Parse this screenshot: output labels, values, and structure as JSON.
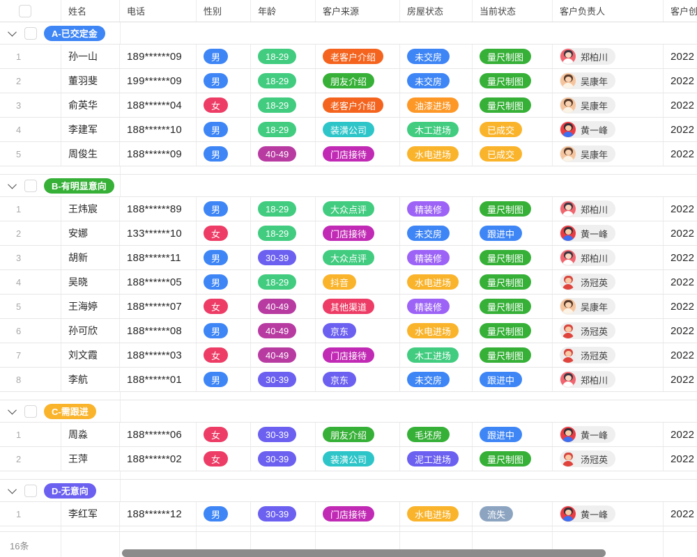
{
  "columns": [
    {
      "key": "name",
      "label": "姓名"
    },
    {
      "key": "phone",
      "label": "电话"
    },
    {
      "key": "gender",
      "label": "性别"
    },
    {
      "key": "age",
      "label": "年龄"
    },
    {
      "key": "source",
      "label": "客户来源"
    },
    {
      "key": "house",
      "label": "房屋状态"
    },
    {
      "key": "status",
      "label": "当前状态"
    },
    {
      "key": "owner",
      "label": "客户负责人"
    },
    {
      "key": "created",
      "label": "客户创建时间"
    }
  ],
  "palette": {
    "blue": "#3E85F6",
    "pink": "#ED3C65",
    "mint": "#42CC80",
    "grass": "#36B037",
    "plum": "#B83BA2",
    "magenta": "#C12AB4",
    "indigo": "#6B60F0",
    "amber": "#FAB42C",
    "orangered": "#F4641E",
    "orange": "#FD9827",
    "teal": "#2EC5C9",
    "violet": "#9C63F6",
    "grayblue": "#8DA4C1"
  },
  "owners": {
    "郑柏川": {
      "bg": "#F2646E",
      "hair": "#3B3540",
      "skin": "#FBD6BF",
      "body": "#FFFFFF"
    },
    "吴康年": {
      "bg": "#F6C49C",
      "hair": "#573A2B",
      "skin": "#FAD3B2",
      "body": "#FBF3E6"
    },
    "黄一峰": {
      "bg": "#EC3B42",
      "hair": "#332D36",
      "skin": "#F8CBA6",
      "body": "#3E6FF0"
    },
    "汤冠英": {
      "bg": "#EDEDED",
      "hair": "#D8453E",
      "skin": "#F8CBA6",
      "body": "#E0433C"
    }
  },
  "groups": [
    {
      "label": "A-已交定金",
      "color": "blue",
      "rows": [
        {
          "num": "1",
          "name": "孙一山",
          "phone": "189******09",
          "gender": {
            "label": "男",
            "color": "blue"
          },
          "age": {
            "label": "18-29",
            "color": "mint"
          },
          "source": {
            "label": "老客户介绍",
            "color": "orangered"
          },
          "house": {
            "label": "未交房",
            "color": "blue"
          },
          "status": {
            "label": "量尺制图",
            "color": "grass"
          },
          "owner": "郑柏川",
          "created": "2022"
        },
        {
          "num": "2",
          "name": "董羽斐",
          "phone": "199******09",
          "gender": {
            "label": "男",
            "color": "blue"
          },
          "age": {
            "label": "18-29",
            "color": "mint"
          },
          "source": {
            "label": "朋友介绍",
            "color": "grass"
          },
          "house": {
            "label": "未交房",
            "color": "blue"
          },
          "status": {
            "label": "量尺制图",
            "color": "grass"
          },
          "owner": "吴康年",
          "created": "2022"
        },
        {
          "num": "3",
          "name": "俞英华",
          "phone": "188******04",
          "gender": {
            "label": "女",
            "color": "pink"
          },
          "age": {
            "label": "18-29",
            "color": "mint"
          },
          "source": {
            "label": "老客户介绍",
            "color": "orangered"
          },
          "house": {
            "label": "油漆进场",
            "color": "orange"
          },
          "status": {
            "label": "量尺制图",
            "color": "grass"
          },
          "owner": "吴康年",
          "created": "2022"
        },
        {
          "num": "4",
          "name": "李建军",
          "phone": "188******10",
          "gender": {
            "label": "男",
            "color": "blue"
          },
          "age": {
            "label": "18-29",
            "color": "mint"
          },
          "source": {
            "label": "装潢公司",
            "color": "teal"
          },
          "house": {
            "label": "木工进场",
            "color": "mint"
          },
          "status": {
            "label": "已成交",
            "color": "amber"
          },
          "owner": "黄一峰",
          "created": "2022"
        },
        {
          "num": "5",
          "name": "周俊生",
          "phone": "188******09",
          "gender": {
            "label": "男",
            "color": "blue"
          },
          "age": {
            "label": "40-49",
            "color": "plum"
          },
          "source": {
            "label": "门店接待",
            "color": "magenta"
          },
          "house": {
            "label": "水电进场",
            "color": "amber"
          },
          "status": {
            "label": "已成交",
            "color": "amber"
          },
          "owner": "吴康年",
          "created": "2022"
        }
      ]
    },
    {
      "label": "B-有明显意向",
      "color": "grass",
      "rows": [
        {
          "num": "1",
          "name": "王炜宸",
          "phone": "188******89",
          "gender": {
            "label": "男",
            "color": "blue"
          },
          "age": {
            "label": "18-29",
            "color": "mint"
          },
          "source": {
            "label": "大众点评",
            "color": "mint"
          },
          "house": {
            "label": "精装修",
            "color": "violet"
          },
          "status": {
            "label": "量尺制图",
            "color": "grass"
          },
          "owner": "郑柏川",
          "created": "2022"
        },
        {
          "num": "2",
          "name": "安娜",
          "phone": "133******10",
          "gender": {
            "label": "女",
            "color": "pink"
          },
          "age": {
            "label": "18-29",
            "color": "mint"
          },
          "source": {
            "label": "门店接待",
            "color": "magenta"
          },
          "house": {
            "label": "未交房",
            "color": "blue"
          },
          "status": {
            "label": "跟进中",
            "color": "blue"
          },
          "owner": "黄一峰",
          "created": "2022"
        },
        {
          "num": "3",
          "name": "胡新",
          "phone": "188******11",
          "gender": {
            "label": "男",
            "color": "blue"
          },
          "age": {
            "label": "30-39",
            "color": "indigo"
          },
          "source": {
            "label": "大众点评",
            "color": "mint"
          },
          "house": {
            "label": "精装修",
            "color": "violet"
          },
          "status": {
            "label": "量尺制图",
            "color": "grass"
          },
          "owner": "郑柏川",
          "created": "2022"
        },
        {
          "num": "4",
          "name": "吴晓",
          "phone": "188******05",
          "gender": {
            "label": "男",
            "color": "blue"
          },
          "age": {
            "label": "18-29",
            "color": "mint"
          },
          "source": {
            "label": "抖音",
            "color": "amber"
          },
          "house": {
            "label": "水电进场",
            "color": "amber"
          },
          "status": {
            "label": "量尺制图",
            "color": "grass"
          },
          "owner": "汤冠英",
          "created": "2022"
        },
        {
          "num": "5",
          "name": "王海婷",
          "phone": "188******07",
          "gender": {
            "label": "女",
            "color": "pink"
          },
          "age": {
            "label": "40-49",
            "color": "plum"
          },
          "source": {
            "label": "其他渠道",
            "color": "pink"
          },
          "house": {
            "label": "精装修",
            "color": "violet"
          },
          "status": {
            "label": "量尺制图",
            "color": "grass"
          },
          "owner": "吴康年",
          "created": "2022"
        },
        {
          "num": "6",
          "name": "孙可欣",
          "phone": "188******08",
          "gender": {
            "label": "男",
            "color": "blue"
          },
          "age": {
            "label": "40-49",
            "color": "plum"
          },
          "source": {
            "label": "京东",
            "color": "indigo"
          },
          "house": {
            "label": "水电进场",
            "color": "amber"
          },
          "status": {
            "label": "量尺制图",
            "color": "grass"
          },
          "owner": "汤冠英",
          "created": "2022"
        },
        {
          "num": "7",
          "name": "刘文霞",
          "phone": "188******03",
          "gender": {
            "label": "女",
            "color": "pink"
          },
          "age": {
            "label": "40-49",
            "color": "plum"
          },
          "source": {
            "label": "门店接待",
            "color": "magenta"
          },
          "house": {
            "label": "木工进场",
            "color": "mint"
          },
          "status": {
            "label": "量尺制图",
            "color": "grass"
          },
          "owner": "汤冠英",
          "created": "2022"
        },
        {
          "num": "8",
          "name": "李航",
          "phone": "188******01",
          "gender": {
            "label": "男",
            "color": "blue"
          },
          "age": {
            "label": "30-39",
            "color": "indigo"
          },
          "source": {
            "label": "京东",
            "color": "indigo"
          },
          "house": {
            "label": "未交房",
            "color": "blue"
          },
          "status": {
            "label": "跟进中",
            "color": "blue"
          },
          "owner": "郑柏川",
          "created": "2022"
        }
      ]
    },
    {
      "label": "C-需跟进",
      "color": "amber",
      "rows": [
        {
          "num": "1",
          "name": "周淼",
          "phone": "188******06",
          "gender": {
            "label": "女",
            "color": "pink"
          },
          "age": {
            "label": "30-39",
            "color": "indigo"
          },
          "source": {
            "label": "朋友介绍",
            "color": "grass"
          },
          "house": {
            "label": "毛坯房",
            "color": "grass"
          },
          "status": {
            "label": "跟进中",
            "color": "blue"
          },
          "owner": "黄一峰",
          "created": "2022"
        },
        {
          "num": "2",
          "name": "王萍",
          "phone": "188******02",
          "gender": {
            "label": "女",
            "color": "pink"
          },
          "age": {
            "label": "30-39",
            "color": "indigo"
          },
          "source": {
            "label": "装潢公司",
            "color": "teal"
          },
          "house": {
            "label": "泥工进场",
            "color": "indigo"
          },
          "status": {
            "label": "量尺制图",
            "color": "grass"
          },
          "owner": "汤冠英",
          "created": "2022"
        }
      ]
    },
    {
      "label": "D-无意向",
      "color": "indigo",
      "rows": [
        {
          "num": "1",
          "name": "李红军",
          "phone": "188******12",
          "gender": {
            "label": "男",
            "color": "blue"
          },
          "age": {
            "label": "30-39",
            "color": "indigo"
          },
          "source": {
            "label": "门店接待",
            "color": "magenta"
          },
          "house": {
            "label": "水电进场",
            "color": "amber"
          },
          "status": {
            "label": "流失",
            "color": "grayblue"
          },
          "owner": "黄一峰",
          "created": "2022"
        }
      ]
    }
  ],
  "footer": {
    "count": "16条"
  }
}
